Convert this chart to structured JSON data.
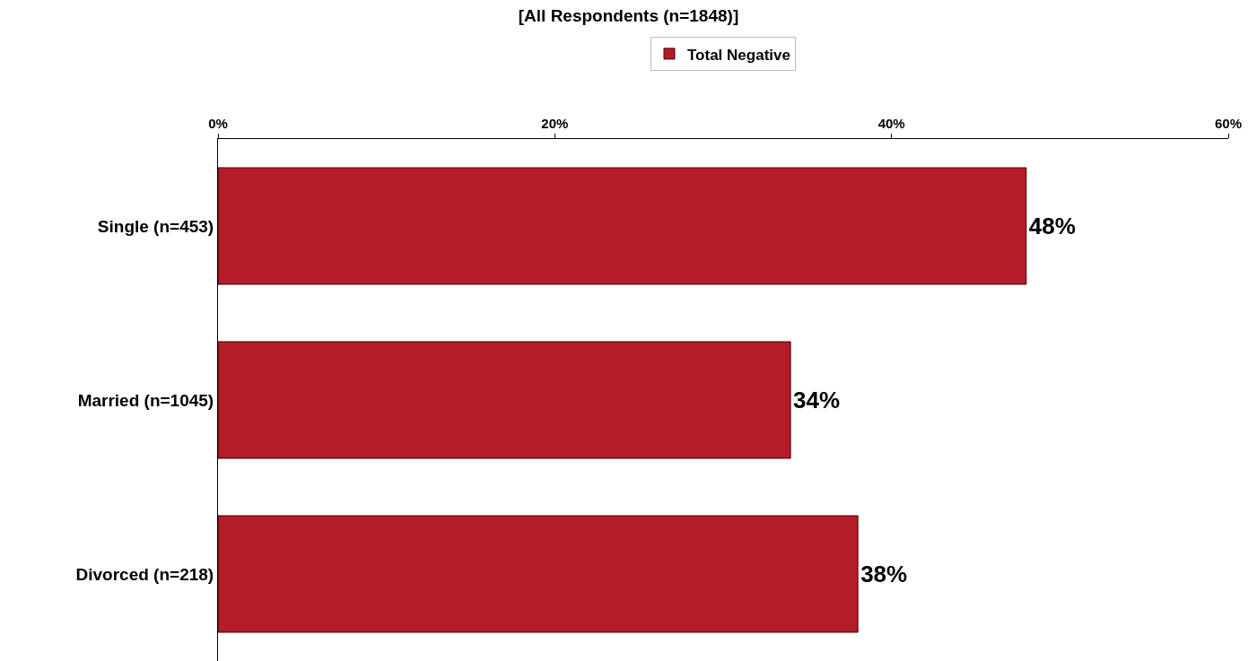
{
  "chart_data": {
    "type": "bar",
    "orientation": "horizontal",
    "title": "[All Respondents (n=1848)]",
    "categories": [
      "Single (n=453)",
      "Married (n=1045)",
      "Divorced (n=218)"
    ],
    "series": [
      {
        "name": "Total Negative",
        "color": "#b41c28",
        "values": [
          48,
          34,
          38
        ],
        "value_labels": [
          "48%",
          "34%",
          "38%"
        ]
      }
    ],
    "xlim": [
      0,
      60
    ],
    "xticks": [
      {
        "value": 0,
        "label": "0%"
      },
      {
        "value": 20,
        "label": "20%"
      },
      {
        "value": 40,
        "label": "40%"
      },
      {
        "value": 60,
        "label": "60%"
      }
    ],
    "legend": "top"
  }
}
